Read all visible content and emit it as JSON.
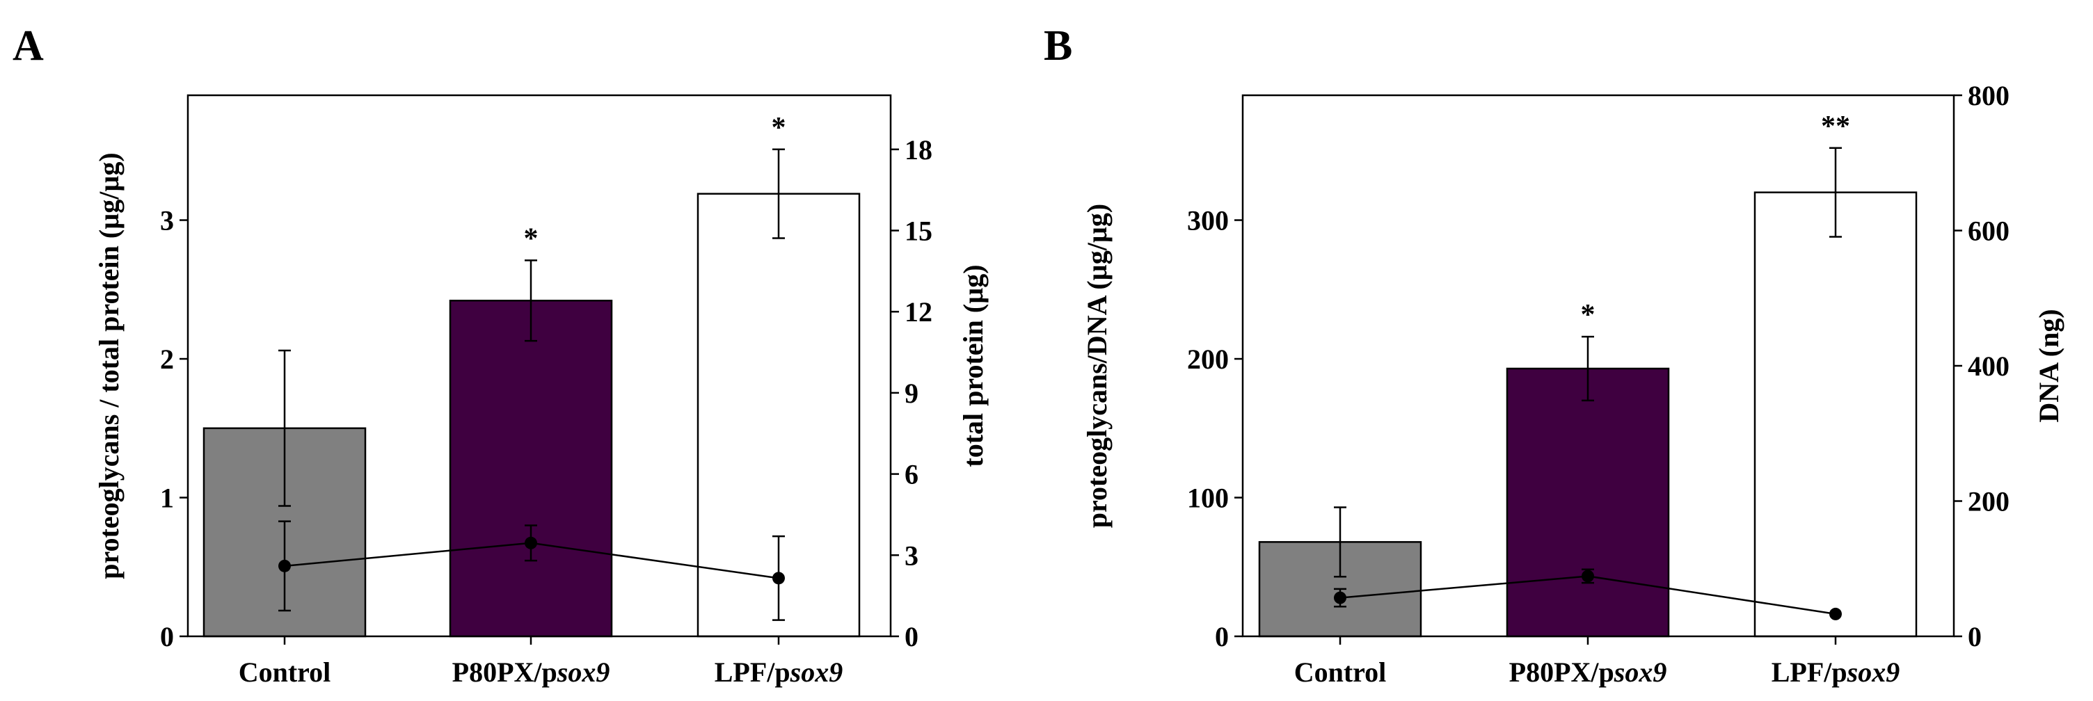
{
  "figure": {
    "panels": [
      "A",
      "B"
    ]
  },
  "chart_data": [
    {
      "type": "bar",
      "panel": "A",
      "categories": [
        "Control",
        "P80PX/p",
        "LPF/p"
      ],
      "category_suffix": [
        "",
        "sox9",
        "sox9"
      ],
      "title": "",
      "ylabel": "proteoglycans / total protein (µg/µg)",
      "y2label": "total protein (µg)",
      "ylim": [
        0,
        3.9
      ],
      "y2lim": [
        0,
        20
      ],
      "yticks": [
        0,
        1,
        2,
        3
      ],
      "y2ticks": [
        0,
        3,
        6,
        9,
        12,
        15,
        18
      ],
      "bar_colors": [
        "#808080",
        "#3f0040",
        "#ffffff"
      ],
      "series": [
        {
          "name": "proteoglycans / total protein",
          "axis": "left",
          "kind": "bar",
          "values": [
            1.5,
            2.42,
            3.19
          ],
          "errors": [
            0.56,
            0.29,
            0.32
          ]
        },
        {
          "name": "total protein",
          "axis": "right",
          "kind": "line",
          "values": [
            2.6,
            3.45,
            2.15
          ],
          "errors": [
            1.65,
            0.65,
            1.55
          ]
        }
      ],
      "significance": [
        "",
        "*",
        "*"
      ]
    },
    {
      "type": "bar",
      "panel": "B",
      "categories": [
        "Control",
        "P80PX/p",
        "LPF/p"
      ],
      "category_suffix": [
        "",
        "sox9",
        "sox9"
      ],
      "title": "",
      "ylabel": "proteoglycans/DNA (µg/µg)",
      "y2label": "DNA (ng)",
      "ylim": [
        0,
        390
      ],
      "y2lim": [
        0,
        800
      ],
      "yticks": [
        0,
        100,
        200,
        300
      ],
      "y2ticks": [
        0,
        200,
        400,
        600,
        800
      ],
      "bar_colors": [
        "#808080",
        "#3f0040",
        "#ffffff"
      ],
      "series": [
        {
          "name": "proteoglycans/DNA",
          "axis": "left",
          "kind": "bar",
          "values": [
            68,
            193,
            320
          ],
          "errors": [
            25,
            23,
            32
          ]
        },
        {
          "name": "DNA",
          "axis": "right",
          "kind": "line",
          "values": [
            57,
            89,
            33
          ],
          "errors": [
            13,
            10,
            0
          ]
        }
      ],
      "significance": [
        "",
        "*",
        "**"
      ]
    }
  ]
}
